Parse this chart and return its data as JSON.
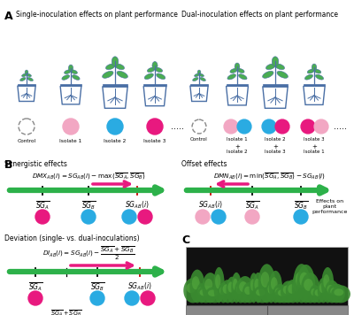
{
  "bg_color": "#ffffff",
  "panel_A_left_title": "Single-inoculation effects on plant performance",
  "panel_A_right_title": "Dual-inoculation effects on plant performance",
  "synergistic_title": "Synergistic effects",
  "offset_title": "Offset effects",
  "deviation_title": "Deviation (single- vs. dual-inoculations)",
  "arrow_color_pink": "#E8197F",
  "circle_magenta": "#E8197F",
  "circle_cyan": "#2AABE2",
  "circle_pink_light": "#F2A7C3",
  "circle_white": "#ffffff",
  "line_color_green": "#2DB14A",
  "pot_color": "#4A6FA5",
  "leaf_color": "#4AAD52",
  "root_color": "#4A6FA5",
  "text_color": "#2a2a2a"
}
